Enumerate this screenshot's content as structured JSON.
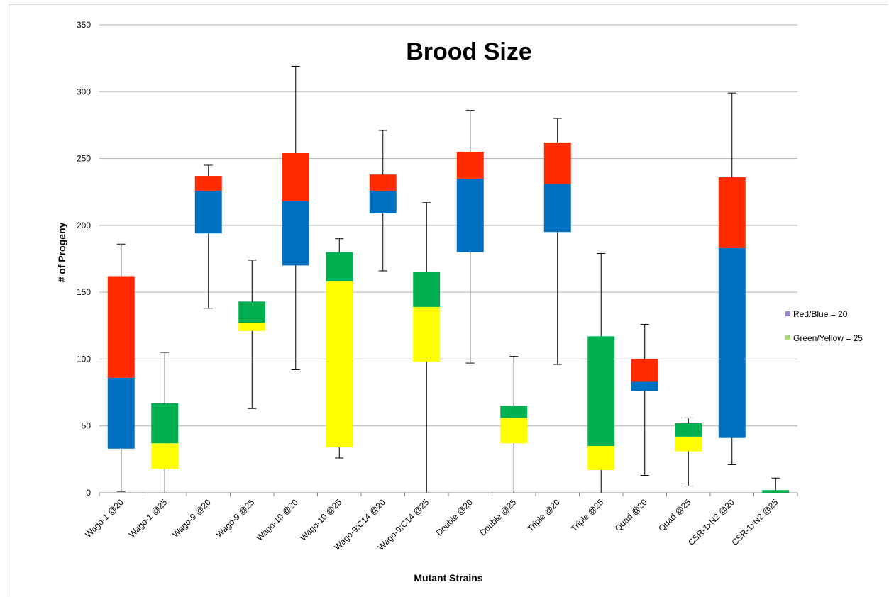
{
  "chart_data": {
    "type": "bar",
    "title": "Brood Size",
    "xlabel": "Mutant Strains",
    "ylabel": "# of Progeny",
    "ylim": [
      0,
      350
    ],
    "yticks": [
      0,
      50,
      100,
      150,
      200,
      250,
      300,
      350
    ],
    "grid": true,
    "legend_position": "right",
    "legend": [
      {
        "label": "Red/Blue = 20",
        "color": "#9b87c9"
      },
      {
        "label": "Green/Yellow = 25",
        "color": "#a6e06b"
      }
    ],
    "categories": [
      "Wago-1 @20",
      "Wago-1 @25",
      "Wago-9 @20",
      "Wago-9 @25",
      "Wago-10 @20",
      "Wago-10 @25",
      "Wago-9;C14 @20",
      "Wago-9;C14 @25",
      "Double @20",
      "Double @25",
      "Triple @20",
      "Triple @25",
      "Quad @20",
      "Quad @25",
      "CSR-1xN2 @20",
      "CSR-1xN2 @25"
    ],
    "boxes": [
      {
        "min": 1,
        "q1": 33,
        "median": 86,
        "q3": 162,
        "max": 186,
        "lower_color": "#0070c0",
        "upper_color": "#ff2a00"
      },
      {
        "min": 0,
        "q1": 18,
        "median": 37,
        "q3": 67,
        "max": 105,
        "lower_color": "#ffff00",
        "upper_color": "#00b050"
      },
      {
        "min": 138,
        "q1": 194,
        "median": 226,
        "q3": 237,
        "max": 245,
        "lower_color": "#0070c0",
        "upper_color": "#ff2a00"
      },
      {
        "min": 63,
        "q1": 121,
        "median": 127,
        "q3": 143,
        "max": 174,
        "lower_color": "#ffff00",
        "upper_color": "#00b050"
      },
      {
        "min": 92,
        "q1": 170,
        "median": 218,
        "q3": 254,
        "max": 319,
        "lower_color": "#0070c0",
        "upper_color": "#ff2a00"
      },
      {
        "min": 26,
        "q1": 34,
        "median": 158,
        "q3": 180,
        "max": 190,
        "lower_color": "#ffff00",
        "upper_color": "#00b050"
      },
      {
        "min": 166,
        "q1": 209,
        "median": 226,
        "q3": 238,
        "max": 271,
        "lower_color": "#0070c0",
        "upper_color": "#ff2a00"
      },
      {
        "min": 0,
        "q1": 98,
        "median": 139,
        "q3": 165,
        "max": 217,
        "lower_color": "#ffff00",
        "upper_color": "#00b050"
      },
      {
        "min": 97,
        "q1": 180,
        "median": 235,
        "q3": 255,
        "max": 286,
        "lower_color": "#0070c0",
        "upper_color": "#ff2a00"
      },
      {
        "min": 0,
        "q1": 37,
        "median": 56,
        "q3": 65,
        "max": 102,
        "lower_color": "#ffff00",
        "upper_color": "#00b050"
      },
      {
        "min": 96,
        "q1": 195,
        "median": 231,
        "q3": 262,
        "max": 280,
        "lower_color": "#0070c0",
        "upper_color": "#ff2a00"
      },
      {
        "min": 0,
        "q1": 17,
        "median": 35,
        "q3": 117,
        "max": 179,
        "lower_color": "#ffff00",
        "upper_color": "#00b050"
      },
      {
        "min": 13,
        "q1": 76,
        "median": 83,
        "q3": 100,
        "max": 126,
        "lower_color": "#0070c0",
        "upper_color": "#ff2a00"
      },
      {
        "min": 5,
        "q1": 31,
        "median": 42,
        "q3": 52,
        "max": 56,
        "lower_color": "#ffff00",
        "upper_color": "#00b050"
      },
      {
        "min": 21,
        "q1": 41,
        "median": 183,
        "q3": 236,
        "max": 299,
        "lower_color": "#0070c0",
        "upper_color": "#ff2a00"
      },
      {
        "min": 0,
        "q1": 0,
        "median": 0,
        "q3": 2,
        "max": 11,
        "lower_color": "#ffff00",
        "upper_color": "#00b050"
      }
    ]
  }
}
